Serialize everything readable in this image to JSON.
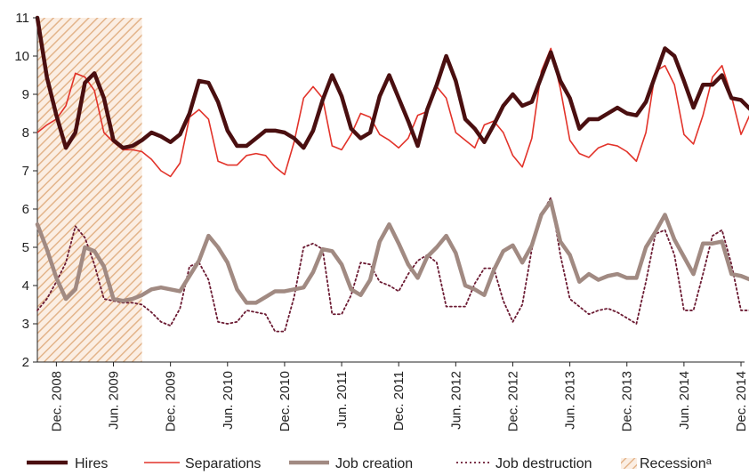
{
  "chart_data": {
    "type": "line",
    "ylim": [
      2,
      11
    ],
    "yticks": [
      2,
      3,
      4,
      5,
      6,
      7,
      8,
      9,
      10,
      11
    ],
    "xlim": [
      0,
      72
    ],
    "xticks": [
      {
        "x": 2,
        "label": "Dec. 2008"
      },
      {
        "x": 8,
        "label": "Jun. 2009"
      },
      {
        "x": 14,
        "label": "Dec. 2009"
      },
      {
        "x": 20,
        "label": "Jun. 2010"
      },
      {
        "x": 26,
        "label": "Dec. 2010"
      },
      {
        "x": 32,
        "label": "Jun. 2011"
      },
      {
        "x": 38,
        "label": "Dec. 2011"
      },
      {
        "x": 44,
        "label": "Jun. 2012"
      },
      {
        "x": 50,
        "label": "Dec. 2012"
      },
      {
        "x": 56,
        "label": "Jun. 2013"
      },
      {
        "x": 62,
        "label": "Dec. 2013"
      },
      {
        "x": 68,
        "label": "Jun. 2014"
      },
      {
        "x": 74,
        "label": "Dec. 2014"
      }
    ],
    "recession": {
      "x_start": 0,
      "x_end": 11,
      "label": "Recessionᵃ"
    },
    "series": [
      {
        "name": "Hires",
        "color": "#4a0f10",
        "style": "thick",
        "values": [
          11.0,
          9.45,
          8.45,
          7.6,
          8.0,
          9.3,
          9.55,
          8.9,
          7.8,
          7.6,
          7.65,
          7.8,
          8.0,
          7.9,
          7.75,
          7.95,
          8.5,
          9.35,
          9.3,
          8.8,
          8.05,
          7.65,
          7.65,
          7.85,
          8.05,
          8.05,
          8.0,
          7.85,
          7.6,
          8.05,
          8.85,
          9.5,
          8.95,
          8.1,
          7.85,
          8.0,
          8.95,
          9.5,
          8.9,
          8.3,
          7.65,
          8.6,
          9.25,
          10.0,
          9.35,
          8.35,
          8.1,
          7.75,
          8.2,
          8.7,
          9.0,
          8.7,
          8.8,
          9.45,
          10.1,
          9.35,
          8.9,
          8.1,
          8.35,
          8.35,
          8.5,
          8.65,
          8.5,
          8.45,
          8.8,
          9.5,
          10.2,
          10.0,
          9.35,
          8.65,
          9.25,
          9.25,
          9.5,
          8.9,
          8.85,
          8.6
        ]
      },
      {
        "name": "Separations",
        "color": "#e2332a",
        "style": "thin",
        "values": [
          8.0,
          8.2,
          8.35,
          8.7,
          9.55,
          9.45,
          9.1,
          8.0,
          7.75,
          7.55,
          7.55,
          7.5,
          7.3,
          7.0,
          6.85,
          7.2,
          8.4,
          8.6,
          8.35,
          7.25,
          7.15,
          7.15,
          7.4,
          7.45,
          7.4,
          7.1,
          6.9,
          7.75,
          8.9,
          9.2,
          8.9,
          7.65,
          7.55,
          7.95,
          8.5,
          8.4,
          7.95,
          7.8,
          7.6,
          7.85,
          8.45,
          8.55,
          9.2,
          8.9,
          8.0,
          7.8,
          7.6,
          8.2,
          8.3,
          8.0,
          7.4,
          7.1,
          7.85,
          9.6,
          10.2,
          9.15,
          7.8,
          7.45,
          7.35,
          7.6,
          7.7,
          7.65,
          7.5,
          7.25,
          8.0,
          9.6,
          9.75,
          9.25,
          7.95,
          7.7,
          8.45,
          9.45,
          9.75,
          8.95,
          7.95,
          8.5
        ]
      },
      {
        "name": "Job creation",
        "color": "#a18a82",
        "style": "thick",
        "values": [
          5.6,
          4.95,
          4.2,
          3.65,
          3.9,
          5.0,
          4.9,
          4.5,
          3.65,
          3.6,
          3.65,
          3.75,
          3.9,
          3.95,
          3.9,
          3.85,
          4.25,
          4.65,
          5.3,
          5.0,
          4.6,
          3.9,
          3.55,
          3.55,
          3.7,
          3.85,
          3.85,
          3.9,
          3.95,
          4.35,
          4.95,
          4.9,
          4.55,
          3.9,
          3.75,
          4.15,
          5.15,
          5.6,
          5.1,
          4.55,
          4.2,
          4.75,
          5.0,
          5.3,
          4.85,
          4.0,
          3.9,
          3.75,
          4.4,
          4.9,
          5.05,
          4.6,
          5.05,
          5.85,
          6.2,
          5.15,
          4.8,
          4.1,
          4.3,
          4.15,
          4.25,
          4.3,
          4.2,
          4.2,
          5.0,
          5.4,
          5.85,
          5.2,
          4.75,
          4.3,
          5.1,
          5.1,
          5.15,
          4.3,
          4.25,
          4.15
        ]
      },
      {
        "name": "Job destruction",
        "color": "#6b1a32",
        "style": "dotted",
        "values": [
          3.35,
          3.65,
          4.1,
          4.6,
          5.55,
          5.25,
          4.55,
          3.65,
          3.6,
          3.55,
          3.55,
          3.5,
          3.3,
          3.05,
          2.95,
          3.4,
          4.5,
          4.6,
          4.15,
          3.05,
          3.0,
          3.05,
          3.35,
          3.3,
          3.25,
          2.8,
          2.8,
          3.7,
          5.0,
          5.1,
          4.95,
          3.25,
          3.25,
          3.75,
          4.6,
          4.55,
          4.1,
          4.0,
          3.85,
          4.3,
          4.65,
          4.8,
          4.6,
          3.45,
          3.45,
          3.45,
          4.05,
          4.45,
          4.45,
          3.6,
          3.05,
          3.5,
          4.95,
          5.85,
          6.3,
          4.8,
          3.65,
          3.45,
          3.25,
          3.35,
          3.4,
          3.3,
          3.15,
          3.0,
          4.1,
          5.35,
          5.45,
          4.8,
          3.35,
          3.35,
          4.3,
          5.3,
          5.45,
          4.55,
          3.35,
          3.35
        ]
      }
    ],
    "legend": [
      {
        "key": "hires",
        "label": "Hires"
      },
      {
        "key": "separations",
        "label": "Separations"
      },
      {
        "key": "job-creation",
        "label": "Job creation"
      },
      {
        "key": "job-destruction",
        "label": "Job destruction"
      },
      {
        "key": "recession",
        "label": "Recessionᵃ"
      }
    ]
  }
}
